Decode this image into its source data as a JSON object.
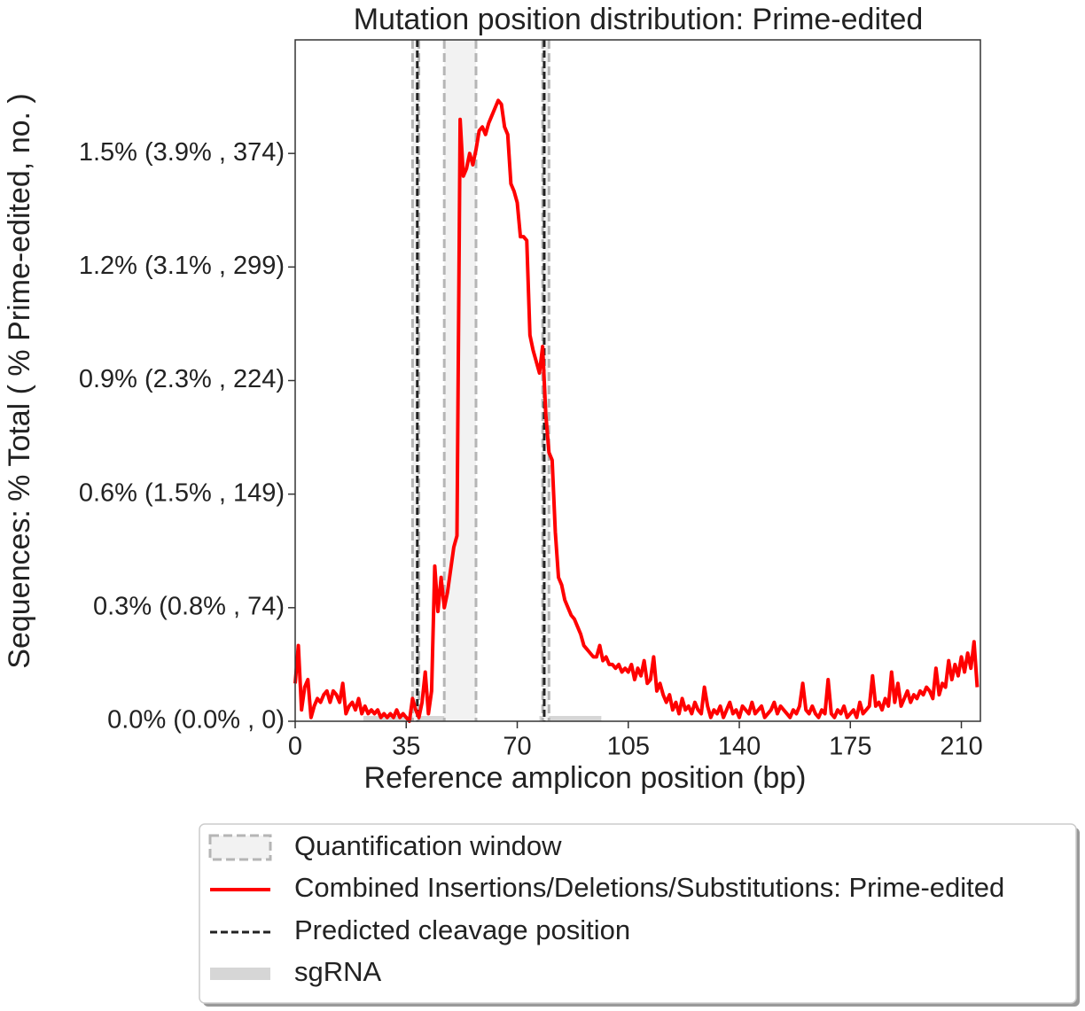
{
  "chart_data": {
    "type": "line",
    "title": "Mutation position distribution: Prime-edited",
    "xlabel": "Reference amplicon position (bp)",
    "ylabel": "Sequences: % Total ( % Prime-edited, no. )",
    "xlim": [
      0,
      216
    ],
    "xticks": [
      0,
      35,
      70,
      105,
      140,
      175,
      210
    ],
    "ylim": [
      0,
      1.8
    ],
    "yticks": [
      {
        "value": 0,
        "label": "0.0% (0.0% , 0)"
      },
      {
        "value": 0.3,
        "label": "0.3% (0.8% , 74)"
      },
      {
        "value": 0.6,
        "label": "0.6% (1.5% , 149)"
      },
      {
        "value": 0.9,
        "label": "0.9% (2.3% , 224)"
      },
      {
        "value": 1.2,
        "label": "1.2% (3.1% , 299)"
      },
      {
        "value": 1.5,
        "label": "1.5% (3.9% , 374)"
      }
    ],
    "quantification_window": {
      "name": "Quantification window",
      "color": "#b5b5b5",
      "ranges": [
        [
          37,
          39
        ],
        [
          47,
          57
        ],
        [
          78,
          80
        ]
      ]
    },
    "cleavage": {
      "name": "Predicted cleavage position",
      "color": "#222222",
      "values": [
        38.5,
        78.5
      ]
    },
    "sgrna": {
      "name": "sgRNA",
      "color": "#d6d6d6",
      "ranges": [
        [
          21.5,
          51
        ],
        [
          77,
          96.5
        ]
      ]
    },
    "legend": "lower center outside",
    "series": [
      {
        "name": "Combined Insertions/Deletions/Substitutions: Prime-edited",
        "color": "#ff0000",
        "x": [
          0,
          1,
          2,
          3,
          4,
          5,
          6,
          7,
          8,
          9,
          10,
          11,
          12,
          13,
          14,
          15,
          16,
          17,
          18,
          19,
          20,
          21,
          22,
          23,
          24,
          25,
          26,
          27,
          28,
          29,
          30,
          31,
          32,
          33,
          34,
          35,
          36,
          37,
          38,
          39,
          40,
          41,
          42,
          43,
          44,
          45,
          46,
          47,
          48,
          49,
          50,
          51,
          52,
          53,
          54,
          55,
          56,
          57,
          58,
          59,
          60,
          61,
          62,
          63,
          64,
          65,
          66,
          67,
          68,
          69,
          70,
          71,
          72,
          73,
          74,
          75,
          76,
          77,
          78,
          79,
          80,
          81,
          82,
          83,
          84,
          85,
          86,
          87,
          88,
          89,
          90,
          91,
          92,
          93,
          94,
          95,
          96,
          97,
          98,
          99,
          100,
          101,
          102,
          103,
          104,
          105,
          106,
          107,
          108,
          109,
          110,
          111,
          112,
          113,
          114,
          115,
          116,
          117,
          118,
          119,
          120,
          121,
          122,
          123,
          124,
          125,
          126,
          127,
          128,
          129,
          130,
          131,
          132,
          133,
          134,
          135,
          136,
          137,
          138,
          139,
          140,
          141,
          142,
          143,
          144,
          145,
          146,
          147,
          148,
          149,
          150,
          151,
          152,
          153,
          154,
          155,
          156,
          157,
          158,
          159,
          160,
          161,
          162,
          163,
          164,
          165,
          166,
          167,
          168,
          169,
          170,
          171,
          172,
          173,
          174,
          175,
          176,
          177,
          178,
          179,
          180,
          181,
          182,
          183,
          184,
          185,
          186,
          187,
          188,
          189,
          190,
          191,
          192,
          193,
          194,
          195,
          196,
          197,
          198,
          199,
          200,
          201,
          202,
          203,
          204,
          205,
          206,
          207,
          208,
          209,
          210,
          211,
          212,
          213,
          214,
          215
        ],
        "values": [
          0.1,
          0.2,
          0.03,
          0.09,
          0.11,
          0.01,
          0.04,
          0.06,
          0.05,
          0.07,
          0.08,
          0.05,
          0.08,
          0.07,
          0.05,
          0.1,
          0.02,
          0.04,
          0.05,
          0.03,
          0.06,
          0.02,
          0.04,
          0.02,
          0.03,
          0.02,
          0.03,
          0.01,
          0.02,
          0.01,
          0.02,
          0.01,
          0.03,
          0.01,
          0.02,
          0.01,
          0.0,
          0.06,
          0.03,
          0.01,
          0.05,
          0.13,
          0.02,
          0.08,
          0.41,
          0.29,
          0.38,
          0.3,
          0.34,
          0.4,
          0.46,
          0.49,
          1.59,
          1.44,
          1.46,
          1.5,
          1.47,
          1.51,
          1.56,
          1.57,
          1.55,
          1.58,
          1.6,
          1.62,
          1.64,
          1.63,
          1.57,
          1.55,
          1.42,
          1.4,
          1.37,
          1.28,
          1.28,
          1.27,
          1.02,
          0.98,
          0.95,
          0.92,
          0.99,
          0.81,
          0.71,
          0.69,
          0.5,
          0.38,
          0.36,
          0.32,
          0.3,
          0.28,
          0.27,
          0.25,
          0.23,
          0.2,
          0.19,
          0.18,
          0.17,
          0.17,
          0.2,
          0.16,
          0.17,
          0.15,
          0.15,
          0.14,
          0.15,
          0.13,
          0.14,
          0.13,
          0.15,
          0.11,
          0.14,
          0.12,
          0.16,
          0.1,
          0.11,
          0.17,
          0.08,
          0.1,
          0.07,
          0.05,
          0.07,
          0.03,
          0.05,
          0.02,
          0.06,
          0.03,
          0.04,
          0.02,
          0.05,
          0.03,
          0.02,
          0.09,
          0.04,
          0.01,
          0.03,
          0.02,
          0.04,
          0.01,
          0.03,
          0.05,
          0.02,
          0.03,
          0.01,
          0.04,
          0.03,
          0.02,
          0.05,
          0.02,
          0.03,
          0.04,
          0.01,
          0.02,
          0.03,
          0.05,
          0.02,
          0.04,
          0.03,
          0.02,
          0.01,
          0.03,
          0.02,
          0.04,
          0.1,
          0.03,
          0.02,
          0.04,
          0.02,
          0.01,
          0.03,
          0.02,
          0.11,
          0.02,
          0.01,
          0.03,
          0.02,
          0.04,
          0.01,
          0.02,
          0.03,
          0.01,
          0.05,
          0.02,
          0.03,
          0.04,
          0.12,
          0.04,
          0.05,
          0.03,
          0.06,
          0.04,
          0.13,
          0.05,
          0.1,
          0.04,
          0.06,
          0.08,
          0.05,
          0.07,
          0.06,
          0.08,
          0.07,
          0.09,
          0.08,
          0.06,
          0.14,
          0.07,
          0.1,
          0.09,
          0.16,
          0.11,
          0.15,
          0.12,
          0.17,
          0.13,
          0.18,
          0.14,
          0.21,
          0.09
        ]
      }
    ]
  }
}
